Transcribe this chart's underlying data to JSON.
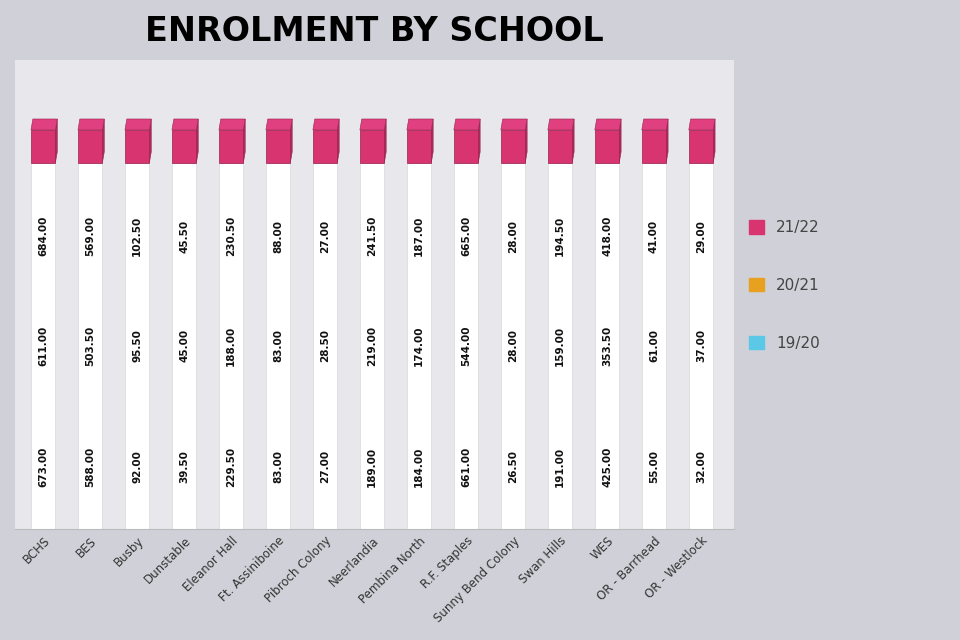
{
  "title": "ENROLMENT BY SCHOOL",
  "schools": [
    "BCHS",
    "BES",
    "Busby",
    "Dunstable",
    "Eleanor Hall",
    "Ft. Assiniboine",
    "Pibroch Colony",
    "Neerlandia",
    "Pembina North",
    "R.F. Staples",
    "Sunny Bend Colony",
    "Swan Hills",
    "WES",
    "OR - Barrhead",
    "OR - Westlock"
  ],
  "values_2122": [
    684.0,
    569.0,
    102.5,
    45.5,
    230.5,
    88.0,
    27.0,
    241.5,
    187.0,
    665.0,
    28.0,
    194.5,
    418.0,
    41.0,
    29.0
  ],
  "values_2021": [
    611.0,
    503.5,
    95.5,
    45.0,
    188.0,
    83.0,
    28.5,
    219.0,
    174.0,
    544.0,
    28.0,
    159.0,
    353.5,
    61.0,
    37.0
  ],
  "values_1920": [
    673.0,
    588.0,
    92.0,
    39.5,
    229.5,
    83.0,
    27.0,
    189.0,
    184.0,
    661.0,
    26.5,
    191.0,
    425.0,
    55.0,
    32.0
  ],
  "color_2122": "#C8356A",
  "color_2021": "#E8A020",
  "color_1920": "#5BC8E8",
  "background_color_outer": "#D0D0D8",
  "background_color_inner": "#E8E8EC",
  "title_fontsize": 24,
  "bar_width": 0.52,
  "bar_color": "#FFFFFF",
  "bar_edge_color": "#DDDDDD",
  "cap_3d_color": "#9A2050",
  "cap_top_color": "#D83570",
  "cap_side_color": "#AA2D60",
  "text_color": "#111111",
  "text_fontsize": 7.5
}
